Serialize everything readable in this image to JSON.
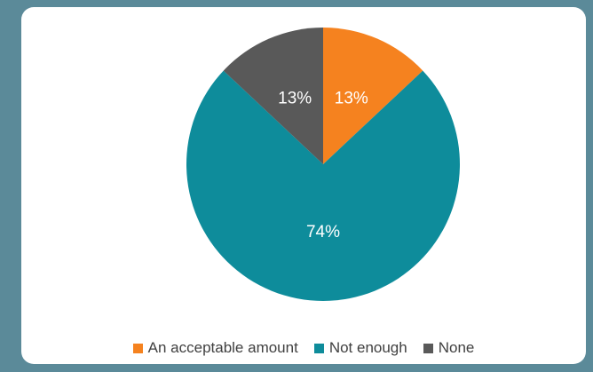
{
  "chart_data": {
    "type": "pie",
    "title": "",
    "slices": [
      {
        "label": "An acceptable amount",
        "value": 13,
        "display": "13%",
        "color": "#f5821f"
      },
      {
        "label": "Not enough",
        "value": 74,
        "display": "74%",
        "color": "#0e8c9b"
      },
      {
        "label": "None",
        "value": 13,
        "display": "13%",
        "color": "#595959"
      }
    ],
    "start": "12 o'clock",
    "direction": "clockwise",
    "legend_position": "bottom"
  },
  "legend": {
    "items": [
      {
        "label": "An acceptable amount",
        "color": "#f5821f"
      },
      {
        "label": "Not enough",
        "color": "#0e8c9b"
      },
      {
        "label": "None",
        "color": "#595959"
      }
    ]
  }
}
